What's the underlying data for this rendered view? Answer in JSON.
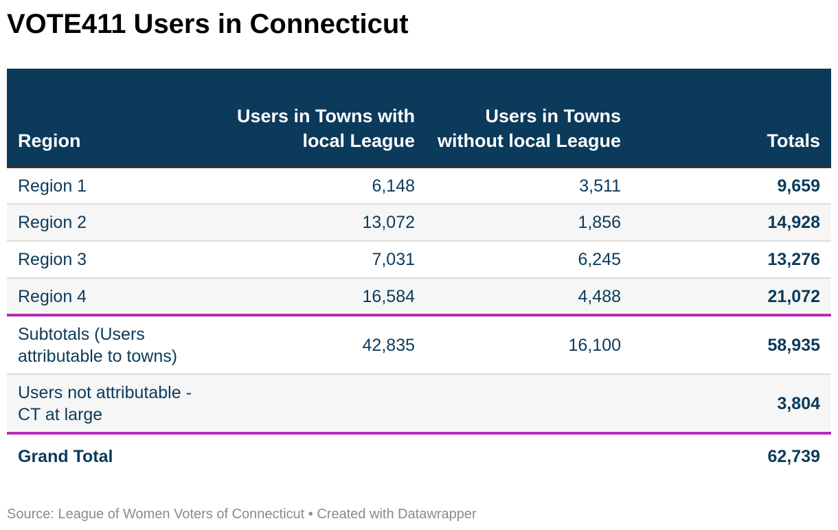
{
  "title": "VOTE411 Users in Connecticut",
  "source": "Source: League of Women Voters of Connecticut • Created with Datawrapper",
  "colors": {
    "header_bg": "#0b3a5b",
    "text": "#0b3a5b",
    "separator": "#b62cb8",
    "row_alt": "#f6f6f6"
  },
  "chart_data": {
    "type": "table",
    "columns": [
      "Region",
      "Users in Towns with local League",
      "Users in Towns without local League",
      "Totals"
    ],
    "rows": [
      [
        "Region 1",
        "6,148",
        "3,511",
        "9,659"
      ],
      [
        "Region 2",
        "13,072",
        "1,856",
        "14,928"
      ],
      [
        "Region 3",
        "7,031",
        "6,245",
        "13,276"
      ],
      [
        "Region 4",
        "16,584",
        "4,488",
        "21,072"
      ],
      [
        "Subtotals (Users attributable to towns)",
        "42,835",
        "16,100",
        "58,935"
      ],
      [
        "Users not attributable - CT at large",
        "",
        "",
        "3,804"
      ],
      [
        "Grand Total",
        "",
        "",
        "62,739"
      ]
    ]
  }
}
